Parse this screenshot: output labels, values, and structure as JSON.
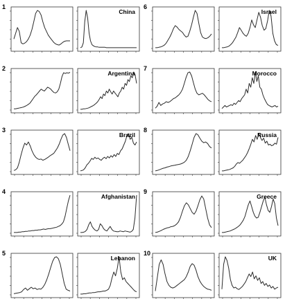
{
  "figure": {
    "colors": {
      "line": "#2a2a2a",
      "frame": "#333333",
      "text": "#000000",
      "background": "#ffffff"
    }
  },
  "chart_data": [
    {
      "number": "1",
      "country": "China",
      "left": {
        "type": "line",
        "y": [
          0.25,
          0.4,
          0.55,
          0.45,
          0.15,
          0.12,
          0.14,
          0.18,
          0.25,
          0.35,
          0.5,
          0.7,
          0.92,
          1.0,
          0.97,
          0.88,
          0.7,
          0.55,
          0.45,
          0.35,
          0.28,
          0.22,
          0.16,
          0.12,
          0.1,
          0.09,
          0.12,
          0.16,
          0.19,
          0.2,
          0.2,
          0.2
        ]
      },
      "right": {
        "type": "line",
        "y": [
          0.02,
          0.04,
          0.15,
          0.7,
          1.0,
          0.8,
          0.4,
          0.2,
          0.1,
          0.07,
          0.05,
          0.04,
          0.04,
          0.03,
          0.03,
          0.03,
          0.03,
          0.03,
          0.02,
          0.02,
          0.02,
          0.02,
          0.02,
          0.02,
          0.02,
          0.02,
          0.02,
          0.02,
          0.02,
          0.02,
          0.02,
          0.02,
          0.02,
          0.02,
          0.02,
          0.02,
          0.02,
          0.02,
          0.02,
          0.02
        ]
      }
    },
    {
      "number": "2",
      "country": "Argentina",
      "left": {
        "type": "line",
        "y": [
          0.03,
          0.03,
          0.04,
          0.05,
          0.06,
          0.07,
          0.08,
          0.1,
          0.12,
          0.15,
          0.18,
          0.24,
          0.3,
          0.36,
          0.4,
          0.45,
          0.5,
          0.55,
          0.52,
          0.5,
          0.55,
          0.6,
          0.58,
          0.55,
          0.5,
          0.46,
          0.45,
          0.48,
          0.55,
          0.7,
          0.88,
          0.98,
          0.96,
          0.98,
          0.97,
          0.99
        ]
      },
      "right": {
        "type": "line",
        "y": [
          0.02,
          0.02,
          0.03,
          0.03,
          0.04,
          0.05,
          0.06,
          0.08,
          0.1,
          0.12,
          0.15,
          0.18,
          0.22,
          0.28,
          0.35,
          0.3,
          0.42,
          0.38,
          0.5,
          0.45,
          0.55,
          0.48,
          0.42,
          0.5,
          0.45,
          0.4,
          0.35,
          0.45,
          0.5,
          0.6,
          0.55,
          0.7,
          0.65,
          0.8,
          0.75,
          0.9,
          0.85,
          1.0,
          0.92,
          0.7
        ]
      }
    },
    {
      "number": "3",
      "country": "Brazil",
      "left": {
        "type": "line",
        "y": [
          0.03,
          0.05,
          0.1,
          0.25,
          0.45,
          0.62,
          0.75,
          0.7,
          0.78,
          0.68,
          0.55,
          0.45,
          0.38,
          0.34,
          0.32,
          0.33,
          0.3,
          0.32,
          0.35,
          0.38,
          0.42,
          0.45,
          0.48,
          0.55,
          0.62,
          0.72,
          0.85,
          0.96,
          1.0,
          0.9,
          0.72,
          0.55
        ]
      },
      "right": {
        "type": "line",
        "y": [
          0.02,
          0.03,
          0.05,
          0.1,
          0.18,
          0.22,
          0.28,
          0.35,
          0.32,
          0.38,
          0.34,
          0.36,
          0.32,
          0.3,
          0.35,
          0.38,
          0.34,
          0.4,
          0.36,
          0.42,
          0.38,
          0.45,
          0.4,
          0.48,
          0.45,
          0.55,
          0.6,
          0.7,
          0.8,
          0.95,
          1.0,
          0.85,
          0.9,
          0.75,
          0.7,
          0.78
        ]
      }
    },
    {
      "number": "4",
      "country": "Afghanistan",
      "left": {
        "type": "line",
        "y": [
          0.02,
          0.02,
          0.02,
          0.03,
          0.03,
          0.04,
          0.04,
          0.05,
          0.05,
          0.06,
          0.06,
          0.07,
          0.07,
          0.08,
          0.08,
          0.09,
          0.09,
          0.1,
          0.11,
          0.1,
          0.11,
          0.12,
          0.12,
          0.13,
          0.14,
          0.15,
          0.16,
          0.18,
          0.2,
          0.24,
          0.3,
          0.45,
          0.65,
          0.85,
          1.0
        ]
      },
      "right": {
        "type": "line",
        "y": [
          0.02,
          0.02,
          0.03,
          0.05,
          0.1,
          0.22,
          0.3,
          0.18,
          0.12,
          0.08,
          0.06,
          0.1,
          0.25,
          0.2,
          0.12,
          0.08,
          0.06,
          0.12,
          0.18,
          0.1,
          0.06,
          0.05,
          0.04,
          0.04,
          0.06,
          0.05,
          0.04,
          0.06,
          0.05,
          0.04,
          0.03,
          0.05,
          0.1,
          0.4,
          1.0
        ]
      }
    },
    {
      "number": "5",
      "country": "Lebanon",
      "left": {
        "type": "line",
        "y": [
          0.03,
          0.04,
          0.05,
          0.06,
          0.08,
          0.14,
          0.18,
          0.12,
          0.16,
          0.2,
          0.16,
          0.18,
          0.14,
          0.16,
          0.15,
          0.2,
          0.28,
          0.4,
          0.55,
          0.72,
          0.88,
          0.98,
          1.0,
          0.95,
          0.8,
          0.55,
          0.3,
          0.15,
          0.12,
          0.1
        ]
      },
      "right": {
        "type": "line",
        "y": [
          0.02,
          0.02,
          0.03,
          0.03,
          0.04,
          0.05,
          0.05,
          0.06,
          0.06,
          0.07,
          0.08,
          0.08,
          0.09,
          0.1,
          0.1,
          0.12,
          0.15,
          0.25,
          0.45,
          0.6,
          0.5,
          0.7,
          1.0,
          0.6,
          0.4,
          0.45,
          0.35,
          0.3,
          0.25,
          0.2,
          0.15,
          0.1,
          0.08
        ]
      }
    },
    {
      "number": "6",
      "country": "Israel",
      "left": {
        "type": "line",
        "y": [
          0.02,
          0.02,
          0.03,
          0.04,
          0.06,
          0.09,
          0.14,
          0.22,
          0.3,
          0.4,
          0.52,
          0.6,
          0.56,
          0.5,
          0.46,
          0.42,
          0.35,
          0.3,
          0.32,
          0.45,
          0.62,
          0.82,
          1.0,
          0.92,
          0.66,
          0.42,
          0.3,
          0.27,
          0.26,
          0.28,
          0.32,
          0.38
        ]
      },
      "right": {
        "type": "line",
        "y": [
          0.02,
          0.02,
          0.03,
          0.04,
          0.06,
          0.1,
          0.15,
          0.22,
          0.3,
          0.42,
          0.55,
          0.48,
          0.4,
          0.35,
          0.32,
          0.4,
          0.55,
          0.75,
          0.62,
          0.55,
          0.75,
          0.95,
          0.82,
          0.6,
          0.48,
          0.52,
          0.72,
          1.0,
          0.85,
          0.4,
          0.2,
          0.1,
          0.08
        ]
      }
    },
    {
      "number": "7",
      "country": "Morocco",
      "left": {
        "type": "line",
        "y": [
          0.05,
          0.1,
          0.2,
          0.12,
          0.16,
          0.18,
          0.22,
          0.2,
          0.22,
          0.26,
          0.3,
          0.32,
          0.36,
          0.4,
          0.46,
          0.55,
          0.7,
          0.86,
          0.98,
          1.0,
          0.9,
          0.72,
          0.55,
          0.44,
          0.4,
          0.42,
          0.44,
          0.4,
          0.34,
          0.28,
          0.24,
          0.22
        ]
      },
      "right": {
        "type": "line",
        "y": [
          0.04,
          0.08,
          0.12,
          0.08,
          0.1,
          0.12,
          0.14,
          0.12,
          0.18,
          0.15,
          0.2,
          0.25,
          0.22,
          0.3,
          0.35,
          0.4,
          0.55,
          0.45,
          0.7,
          0.6,
          0.85,
          0.7,
          1.0,
          0.75,
          0.9,
          0.6,
          0.55,
          0.4,
          0.3,
          0.22,
          0.15,
          0.12,
          0.1,
          0.08,
          0.1,
          0.12,
          0.08,
          0.1
        ]
      }
    },
    {
      "number": "8",
      "country": "Russia",
      "left": {
        "type": "line",
        "y": [
          0.02,
          0.03,
          0.05,
          0.07,
          0.09,
          0.1,
          0.12,
          0.13,
          0.15,
          0.16,
          0.17,
          0.18,
          0.19,
          0.2,
          0.22,
          0.25,
          0.3,
          0.4,
          0.55,
          0.72,
          0.9,
          1.0,
          0.97,
          0.88,
          0.8,
          0.76,
          0.78,
          0.74,
          0.66,
          0.62
        ]
      },
      "right": {
        "type": "line",
        "y": [
          0.02,
          0.02,
          0.03,
          0.04,
          0.05,
          0.06,
          0.08,
          0.1,
          0.14,
          0.2,
          0.24,
          0.22,
          0.26,
          0.3,
          0.36,
          0.42,
          0.5,
          0.6,
          0.72,
          0.85,
          0.78,
          0.95,
          0.85,
          1.0,
          0.9,
          0.82,
          0.88,
          0.75,
          0.8,
          0.7,
          0.72,
          0.68,
          0.7,
          0.75,
          0.72,
          0.9
        ]
      }
    },
    {
      "number": "9",
      "country": "Greece",
      "left": {
        "type": "line",
        "y": [
          0.02,
          0.03,
          0.05,
          0.07,
          0.1,
          0.12,
          0.14,
          0.15,
          0.17,
          0.18,
          0.2,
          0.24,
          0.3,
          0.42,
          0.58,
          0.72,
          0.8,
          0.75,
          0.65,
          0.55,
          0.5,
          0.58,
          0.72,
          0.88,
          0.98,
          0.9,
          0.65,
          0.4,
          0.22,
          0.15
        ]
      },
      "right": {
        "type": "line",
        "y": [
          0.02,
          0.02,
          0.03,
          0.04,
          0.05,
          0.06,
          0.08,
          0.1,
          0.12,
          0.15,
          0.18,
          0.22,
          0.28,
          0.35,
          0.45,
          0.6,
          0.75,
          0.85,
          0.7,
          0.55,
          0.45,
          0.4,
          0.42,
          0.55,
          0.7,
          0.85,
          0.95,
          0.75,
          0.6,
          0.55,
          0.7,
          0.9,
          0.78,
          0.4,
          0.2
        ]
      }
    },
    {
      "number": "10",
      "country": "UK",
      "left": {
        "type": "line",
        "y": [
          0.1,
          0.45,
          0.8,
          0.92,
          0.8,
          0.55,
          0.35,
          0.25,
          0.2,
          0.18,
          0.2,
          0.24,
          0.28,
          0.32,
          0.36,
          0.4,
          0.48,
          0.6,
          0.75,
          0.82,
          0.78,
          0.65,
          0.48,
          0.36,
          0.28,
          0.22,
          0.18,
          0.15,
          0.14,
          0.12
        ]
      },
      "right": {
        "type": "line",
        "y": [
          0.15,
          0.8,
          1.0,
          0.9,
          0.7,
          0.4,
          0.25,
          0.18,
          0.2,
          0.16,
          0.14,
          0.18,
          0.22,
          0.28,
          0.35,
          0.45,
          0.55,
          0.48,
          0.6,
          0.42,
          0.5,
          0.38,
          0.45,
          0.3,
          0.35,
          0.25,
          0.3,
          0.22,
          0.26,
          0.18,
          0.22,
          0.15,
          0.18,
          0.2
        ]
      }
    }
  ]
}
